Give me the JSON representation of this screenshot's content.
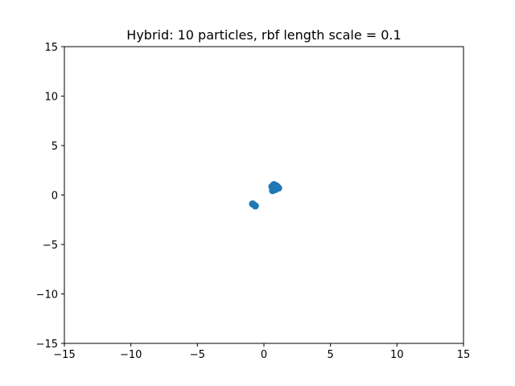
{
  "chart_data": {
    "type": "scatter",
    "title": "Hybrid: 10 particles, rbf length scale = 0.1",
    "xlabel": "",
    "ylabel": "",
    "xlim": [
      -15,
      15
    ],
    "ylim": [
      -15,
      15
    ],
    "xticks": [
      -15,
      -10,
      -5,
      0,
      5,
      10,
      15
    ],
    "yticks": [
      -15,
      -10,
      -5,
      0,
      5,
      10,
      15
    ],
    "xtick_labels": [
      "−15",
      "−10",
      "−5",
      "0",
      "5",
      "10",
      "15"
    ],
    "ytick_labels": [
      "−15",
      "−10",
      "−5",
      "0",
      "5",
      "10",
      "15"
    ],
    "grid": false,
    "legend": "none",
    "point_color": "#1f77b4",
    "series": [
      {
        "x": [
          -0.85,
          -0.65,
          0.6,
          0.75,
          0.9,
          1.1,
          0.65,
          0.85,
          0.75,
          1.0
        ],
        "y": [
          -0.9,
          -1.1,
          0.85,
          1.05,
          0.95,
          0.7,
          0.45,
          0.55,
          0.75,
          0.85
        ]
      }
    ]
  }
}
